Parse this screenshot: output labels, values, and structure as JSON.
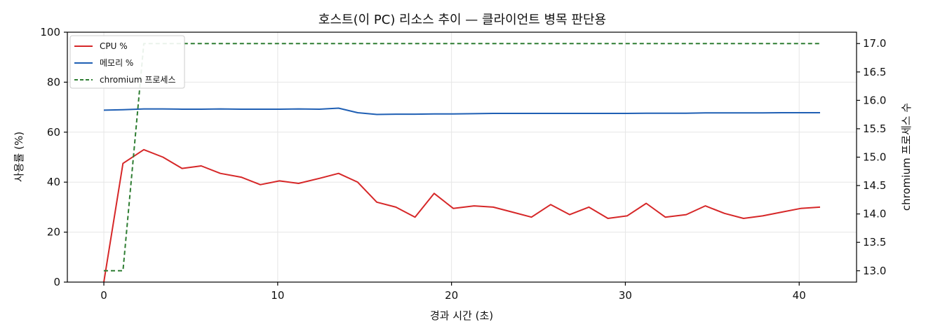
{
  "chart_data": {
    "type": "line",
    "title": "호스트(이 PC) 리소스 추이 — 클라이언트 병목 판단용",
    "xlabel": "경과 시간 (초)",
    "ylabel": "사용률 (%)",
    "y2label": "chromium 프로세스 수",
    "xlim": [
      -2.1,
      43.3
    ],
    "ylim": [
      0,
      100
    ],
    "y2lim": [
      12.8,
      17.2
    ],
    "x_ticks": [
      0,
      10,
      20,
      30,
      40
    ],
    "y_ticks": [
      0,
      20,
      40,
      60,
      80,
      100
    ],
    "y2_ticks": [
      13.0,
      13.5,
      14.0,
      14.5,
      15.0,
      15.5,
      16.0,
      16.5,
      17.0
    ],
    "y2_tick_labels": [
      "13.0",
      "13.5",
      "14.0",
      "14.5",
      "15.0",
      "15.5",
      "16.0",
      "16.5",
      "17.0"
    ],
    "grid": true,
    "legend_position": "upper-left",
    "series": [
      {
        "name": "CPU %",
        "axis": "left",
        "color": "#d62728",
        "style": "solid",
        "x": [
          0,
          1.1,
          2.3,
          3.4,
          4.5,
          5.6,
          6.7,
          7.9,
          9.0,
          10.1,
          11.2,
          12.4,
          13.5,
          14.6,
          15.7,
          16.8,
          17.9,
          19.0,
          20.1,
          21.3,
          22.4,
          23.5,
          24.6,
          25.7,
          26.8,
          27.9,
          29.0,
          30.1,
          31.2,
          32.3,
          33.5,
          34.6,
          35.7,
          36.8,
          37.9,
          39.0,
          40.1,
          41.2
        ],
        "y": [
          0,
          47.5,
          53.0,
          50.0,
          45.5,
          46.5,
          43.5,
          42.0,
          39.0,
          40.5,
          39.5,
          41.5,
          43.5,
          40.0,
          32.0,
          30.0,
          26.0,
          35.5,
          29.5,
          30.5,
          30.0,
          28.0,
          26.0,
          31.0,
          27.0,
          30.0,
          25.5,
          26.5,
          31.5,
          26.0,
          27.0,
          30.5,
          27.5,
          25.5,
          26.5,
          28.0,
          29.5,
          30.0
        ]
      },
      {
        "name": "메모리 %",
        "axis": "left",
        "color": "#1f5fb4",
        "style": "solid",
        "x": [
          0,
          1.1,
          2.3,
          3.4,
          4.5,
          5.6,
          6.7,
          7.9,
          9.0,
          10.1,
          11.2,
          12.4,
          13.5,
          14.6,
          15.7,
          16.8,
          17.9,
          19.0,
          20.1,
          21.3,
          22.4,
          23.5,
          24.6,
          25.7,
          26.8,
          27.9,
          29.0,
          30.1,
          31.2,
          32.3,
          33.5,
          34.6,
          35.7,
          36.8,
          37.9,
          39.0,
          40.1,
          41.2
        ],
        "y": [
          68.8,
          69.0,
          69.3,
          69.3,
          69.2,
          69.2,
          69.3,
          69.2,
          69.2,
          69.2,
          69.3,
          69.2,
          69.6,
          67.8,
          67.1,
          67.2,
          67.2,
          67.3,
          67.3,
          67.4,
          67.5,
          67.5,
          67.5,
          67.5,
          67.5,
          67.5,
          67.5,
          67.5,
          67.6,
          67.6,
          67.6,
          67.7,
          67.7,
          67.7,
          67.7,
          67.8,
          67.8,
          67.8
        ]
      },
      {
        "name": "chromium 프로세스",
        "axis": "right",
        "color": "#2e7d32",
        "style": "dashed",
        "x": [
          0,
          1.1,
          2.3,
          41.2
        ],
        "y": [
          13,
          13,
          17,
          17
        ]
      }
    ]
  }
}
